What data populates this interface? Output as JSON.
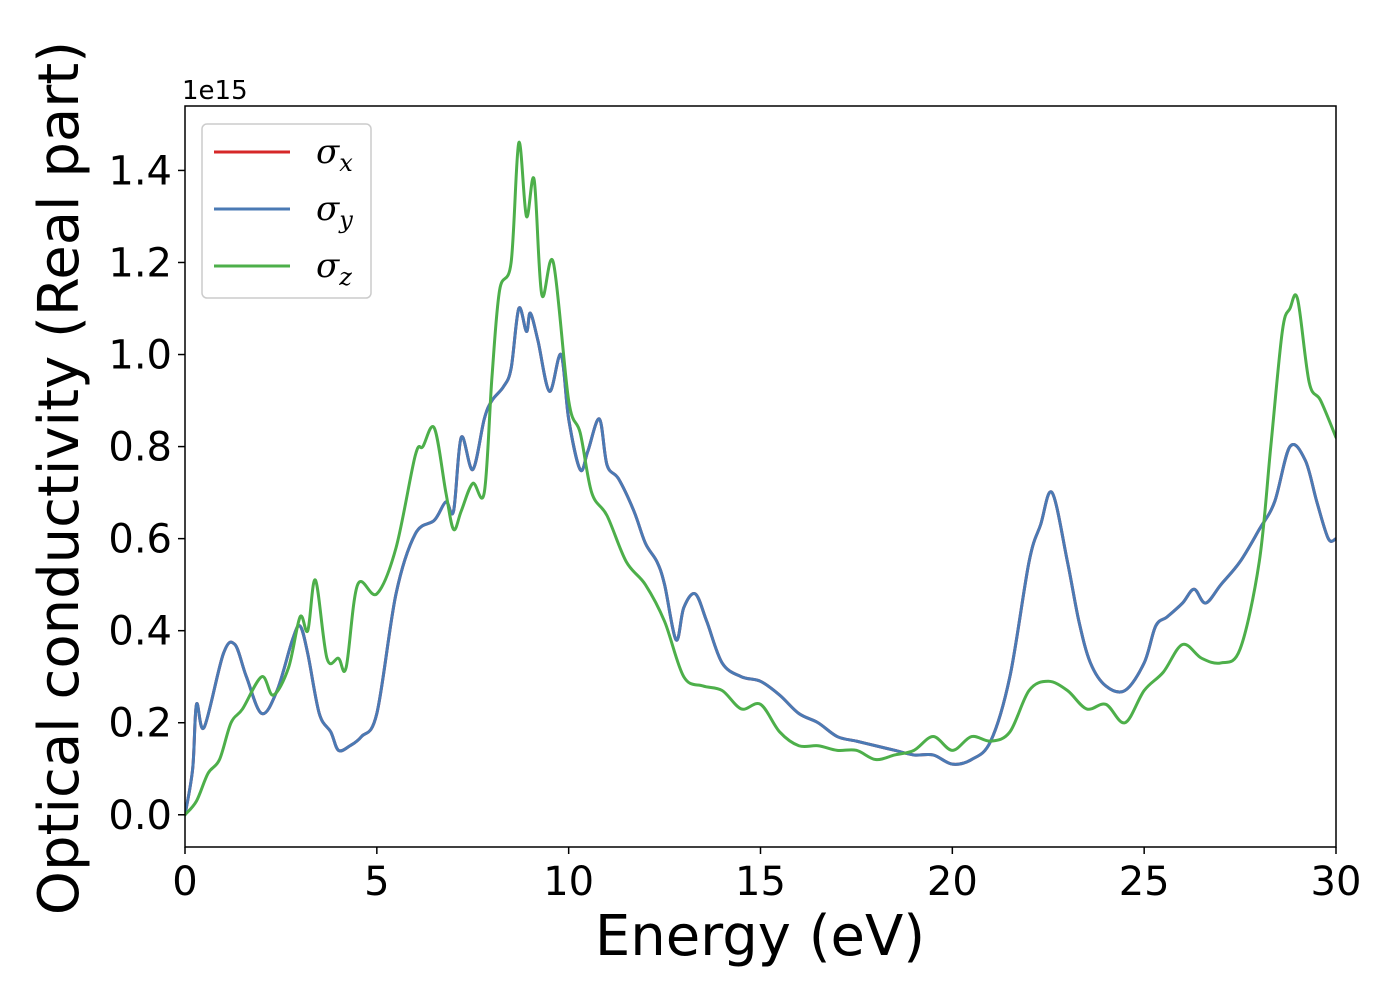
{
  "chart_data": {
    "type": "line",
    "title": "",
    "xlabel": "Energy (eV)",
    "ylabel": "Optical conductivity (Real part)",
    "y_offset_label": "1e15",
    "xlim": [
      0,
      30
    ],
    "ylim": [
      -0.07,
      1.54
    ],
    "xticks": [
      0,
      5,
      10,
      15,
      20,
      25,
      30
    ],
    "xtick_labels": [
      "0",
      "5",
      "10",
      "15",
      "20",
      "25",
      "30"
    ],
    "yticks": [
      0.0,
      0.2,
      0.4,
      0.6,
      0.8,
      1.0,
      1.2,
      1.4
    ],
    "ytick_labels": [
      "0.0",
      "0.2",
      "0.4",
      "0.6",
      "0.8",
      "1.0",
      "1.2",
      "1.4"
    ],
    "grid": false,
    "legend_position": "upper-left",
    "series": [
      {
        "name": "σx",
        "symbol": "σ",
        "subscript": "x",
        "color": "#d62728",
        "x": [
          0,
          0.2,
          0.3,
          0.5,
          1.0,
          1.3,
          1.6,
          2.0,
          2.4,
          2.8,
          3.0,
          3.2,
          3.5,
          3.8,
          4.0,
          4.3,
          4.6,
          5.0,
          5.5,
          6.0,
          6.5,
          6.8,
          7.0,
          7.2,
          7.5,
          7.8,
          8.0,
          8.3,
          8.5,
          8.7,
          8.9,
          9.0,
          9.2,
          9.5,
          9.8,
          10.0,
          10.3,
          10.5,
          10.8,
          11.0,
          11.3,
          11.7,
          12.0,
          12.3,
          12.5,
          12.8,
          13.0,
          13.3,
          13.6,
          14.0,
          14.5,
          15.0,
          15.5,
          16.0,
          16.5,
          17.0,
          17.5,
          18.0,
          18.5,
          19.0,
          19.5,
          20.0,
          20.5,
          21.0,
          21.5,
          22.0,
          22.3,
          22.6,
          23.0,
          23.3,
          23.6,
          24.0,
          24.5,
          25.0,
          25.3,
          25.6,
          26.0,
          26.3,
          26.6,
          27.0,
          27.5,
          28.0,
          28.4,
          28.8,
          29.2,
          29.5,
          29.8,
          30.0
        ],
        "y": [
          0.0,
          0.1,
          0.24,
          0.19,
          0.35,
          0.37,
          0.3,
          0.22,
          0.27,
          0.38,
          0.41,
          0.35,
          0.22,
          0.18,
          0.14,
          0.15,
          0.17,
          0.22,
          0.48,
          0.61,
          0.64,
          0.68,
          0.66,
          0.82,
          0.75,
          0.86,
          0.9,
          0.93,
          0.97,
          1.1,
          1.05,
          1.09,
          1.03,
          0.92,
          1.0,
          0.86,
          0.75,
          0.79,
          0.86,
          0.76,
          0.73,
          0.66,
          0.59,
          0.55,
          0.5,
          0.38,
          0.45,
          0.48,
          0.42,
          0.33,
          0.3,
          0.29,
          0.26,
          0.22,
          0.2,
          0.17,
          0.16,
          0.15,
          0.14,
          0.13,
          0.13,
          0.11,
          0.12,
          0.16,
          0.3,
          0.55,
          0.63,
          0.7,
          0.55,
          0.42,
          0.33,
          0.28,
          0.27,
          0.33,
          0.41,
          0.43,
          0.46,
          0.49,
          0.46,
          0.5,
          0.55,
          0.62,
          0.68,
          0.8,
          0.77,
          0.68,
          0.6,
          0.6
        ]
      },
      {
        "name": "σy",
        "symbol": "σ",
        "subscript": "y",
        "color": "#4a7ab4",
        "x": [
          0,
          0.2,
          0.3,
          0.5,
          1.0,
          1.3,
          1.6,
          2.0,
          2.4,
          2.8,
          3.0,
          3.2,
          3.5,
          3.8,
          4.0,
          4.3,
          4.6,
          5.0,
          5.5,
          6.0,
          6.5,
          6.8,
          7.0,
          7.2,
          7.5,
          7.8,
          8.0,
          8.3,
          8.5,
          8.7,
          8.9,
          9.0,
          9.2,
          9.5,
          9.8,
          10.0,
          10.3,
          10.5,
          10.8,
          11.0,
          11.3,
          11.7,
          12.0,
          12.3,
          12.5,
          12.8,
          13.0,
          13.3,
          13.6,
          14.0,
          14.5,
          15.0,
          15.5,
          16.0,
          16.5,
          17.0,
          17.5,
          18.0,
          18.5,
          19.0,
          19.5,
          20.0,
          20.5,
          21.0,
          21.5,
          22.0,
          22.3,
          22.6,
          23.0,
          23.3,
          23.6,
          24.0,
          24.5,
          25.0,
          25.3,
          25.6,
          26.0,
          26.3,
          26.6,
          27.0,
          27.5,
          28.0,
          28.4,
          28.8,
          29.2,
          29.5,
          29.8,
          30.0
        ],
        "y": [
          0.0,
          0.1,
          0.24,
          0.19,
          0.35,
          0.37,
          0.3,
          0.22,
          0.27,
          0.38,
          0.41,
          0.35,
          0.22,
          0.18,
          0.14,
          0.15,
          0.17,
          0.22,
          0.48,
          0.61,
          0.64,
          0.68,
          0.66,
          0.82,
          0.75,
          0.86,
          0.9,
          0.93,
          0.97,
          1.1,
          1.05,
          1.09,
          1.03,
          0.92,
          1.0,
          0.86,
          0.75,
          0.79,
          0.86,
          0.76,
          0.73,
          0.66,
          0.59,
          0.55,
          0.5,
          0.38,
          0.45,
          0.48,
          0.42,
          0.33,
          0.3,
          0.29,
          0.26,
          0.22,
          0.2,
          0.17,
          0.16,
          0.15,
          0.14,
          0.13,
          0.13,
          0.11,
          0.12,
          0.16,
          0.3,
          0.55,
          0.63,
          0.7,
          0.55,
          0.42,
          0.33,
          0.28,
          0.27,
          0.33,
          0.41,
          0.43,
          0.46,
          0.49,
          0.46,
          0.5,
          0.55,
          0.62,
          0.68,
          0.8,
          0.77,
          0.68,
          0.6,
          0.6
        ]
      },
      {
        "name": "σz",
        "symbol": "σ",
        "subscript": "z",
        "color": "#4daf4a",
        "x": [
          0,
          0.3,
          0.6,
          0.9,
          1.2,
          1.5,
          2.0,
          2.3,
          2.7,
          3.0,
          3.2,
          3.4,
          3.7,
          4.0,
          4.2,
          4.5,
          5.0,
          5.5,
          6.0,
          6.2,
          6.5,
          6.8,
          7.0,
          7.2,
          7.5,
          7.8,
          8.0,
          8.2,
          8.5,
          8.7,
          8.9,
          9.1,
          9.3,
          9.6,
          10.0,
          10.3,
          10.6,
          11.0,
          11.5,
          12.0,
          12.5,
          13.0,
          13.5,
          14.0,
          14.5,
          15.0,
          15.5,
          16.0,
          16.5,
          17.0,
          17.5,
          18.0,
          18.5,
          19.0,
          19.5,
          20.0,
          20.5,
          21.0,
          21.5,
          22.0,
          22.5,
          23.0,
          23.5,
          24.0,
          24.5,
          25.0,
          25.5,
          26.0,
          26.5,
          27.0,
          27.5,
          28.0,
          28.3,
          28.6,
          28.8,
          29.0,
          29.3,
          29.6,
          30.0
        ],
        "y": [
          0.0,
          0.03,
          0.09,
          0.12,
          0.2,
          0.23,
          0.3,
          0.26,
          0.32,
          0.43,
          0.4,
          0.51,
          0.34,
          0.34,
          0.32,
          0.5,
          0.48,
          0.58,
          0.78,
          0.8,
          0.84,
          0.7,
          0.62,
          0.66,
          0.72,
          0.7,
          0.95,
          1.14,
          1.2,
          1.46,
          1.3,
          1.38,
          1.13,
          1.2,
          0.9,
          0.83,
          0.7,
          0.65,
          0.55,
          0.5,
          0.42,
          0.3,
          0.28,
          0.27,
          0.23,
          0.24,
          0.18,
          0.15,
          0.15,
          0.14,
          0.14,
          0.12,
          0.13,
          0.14,
          0.17,
          0.14,
          0.17,
          0.16,
          0.18,
          0.27,
          0.29,
          0.27,
          0.23,
          0.24,
          0.2,
          0.27,
          0.31,
          0.37,
          0.34,
          0.33,
          0.36,
          0.55,
          0.8,
          1.05,
          1.1,
          1.12,
          0.94,
          0.9,
          0.82
        ]
      }
    ]
  }
}
